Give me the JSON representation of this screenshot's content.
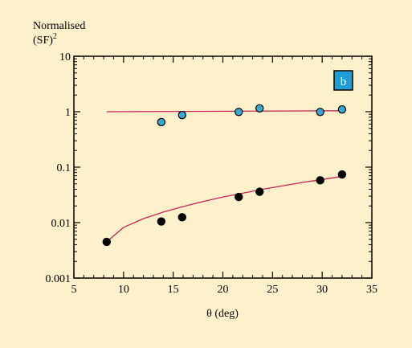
{
  "chart_data": {
    "type": "scatter",
    "ylabel": "Normalised",
    "ylabel_line2": "(SF)",
    "ylabel_superscript": "2",
    "xlabel": "θ (deg)",
    "panel_label": "b",
    "xlim": [
      5,
      35
    ],
    "ylim": [
      0.001,
      10
    ],
    "yscale": "log",
    "x_ticks": [
      5,
      10,
      15,
      20,
      25,
      30,
      35
    ],
    "x_tick_labels": [
      "5",
      "10",
      "15",
      "20",
      "25",
      "30",
      "35"
    ],
    "y_ticks": [
      0.001,
      0.01,
      0.1,
      1,
      10
    ],
    "y_tick_labels": [
      "0.001",
      "0.01",
      "0.1",
      "1",
      "10"
    ],
    "grid": false,
    "series": [
      {
        "color": "#3aa6d4",
        "points": [
          {
            "x": 13.8,
            "y": 0.65
          },
          {
            "x": 15.9,
            "y": 0.87
          },
          {
            "x": 21.6,
            "y": 0.99
          },
          {
            "x": 23.7,
            "y": 1.15
          },
          {
            "x": 29.8,
            "y": 0.99
          },
          {
            "x": 32.0,
            "y": 1.1
          }
        ],
        "fit": [
          {
            "x": 8.3,
            "y": 1.0
          },
          {
            "x": 32.0,
            "y": 1.04
          }
        ]
      },
      {
        "color": "#000000",
        "points": [
          {
            "x": 8.3,
            "y": 0.0045
          },
          {
            "x": 13.8,
            "y": 0.0105
          },
          {
            "x": 15.9,
            "y": 0.0125
          },
          {
            "x": 21.6,
            "y": 0.029
          },
          {
            "x": 23.7,
            "y": 0.036
          },
          {
            "x": 29.8,
            "y": 0.058
          },
          {
            "x": 32.0,
            "y": 0.074
          }
        ],
        "fit": [
          {
            "x": 8.3,
            "y": 0.0045
          },
          {
            "x": 10.0,
            "y": 0.0082
          },
          {
            "x": 12.0,
            "y": 0.0118
          },
          {
            "x": 14.0,
            "y": 0.0155
          },
          {
            "x": 16.0,
            "y": 0.0195
          },
          {
            "x": 18.0,
            "y": 0.024
          },
          {
            "x": 20.0,
            "y": 0.029
          },
          {
            "x": 22.0,
            "y": 0.034
          },
          {
            "x": 24.0,
            "y": 0.04
          },
          {
            "x": 26.0,
            "y": 0.046
          },
          {
            "x": 28.0,
            "y": 0.053
          },
          {
            "x": 30.0,
            "y": 0.06
          },
          {
            "x": 32.0,
            "y": 0.068
          }
        ]
      }
    ],
    "fit_color": "#c8245a",
    "panel_label_bg": "#1e9fd8"
  }
}
